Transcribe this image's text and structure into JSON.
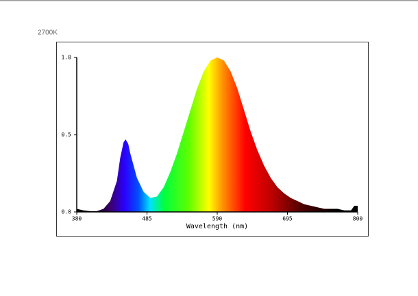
{
  "chart_data": {
    "type": "area",
    "title": "2700K",
    "x_label": "Wavelength (nm)",
    "x": [
      380,
      390,
      400,
      410,
      420,
      430,
      440,
      445,
      450,
      453,
      457,
      460,
      470,
      480,
      490,
      500,
      510,
      520,
      530,
      540,
      550,
      560,
      570,
      580,
      590,
      600,
      610,
      620,
      630,
      640,
      650,
      660,
      670,
      680,
      690,
      700,
      710,
      720,
      730,
      740,
      750,
      760,
      770,
      780,
      790,
      795,
      800
    ],
    "values": [
      0.02,
      0.01,
      0.005,
      0.005,
      0.02,
      0.07,
      0.2,
      0.35,
      0.45,
      0.47,
      0.44,
      0.38,
      0.22,
      0.13,
      0.09,
      0.1,
      0.16,
      0.26,
      0.38,
      0.52,
      0.66,
      0.8,
      0.91,
      0.98,
      1.0,
      0.98,
      0.91,
      0.8,
      0.66,
      0.52,
      0.4,
      0.3,
      0.22,
      0.16,
      0.12,
      0.09,
      0.07,
      0.05,
      0.04,
      0.03,
      0.02,
      0.02,
      0.02,
      0.01,
      0.01,
      0.04,
      0.04
    ],
    "xlim": [
      380,
      800
    ],
    "xticks": [
      380,
      485,
      590,
      695,
      800
    ],
    "ylim": [
      0,
      1
    ],
    "yticks": [
      {
        "value": 0,
        "label": "0.0"
      },
      {
        "value": 0.5,
        "label": "0.5"
      },
      {
        "value": 1,
        "label": "1.0"
      }
    ]
  }
}
